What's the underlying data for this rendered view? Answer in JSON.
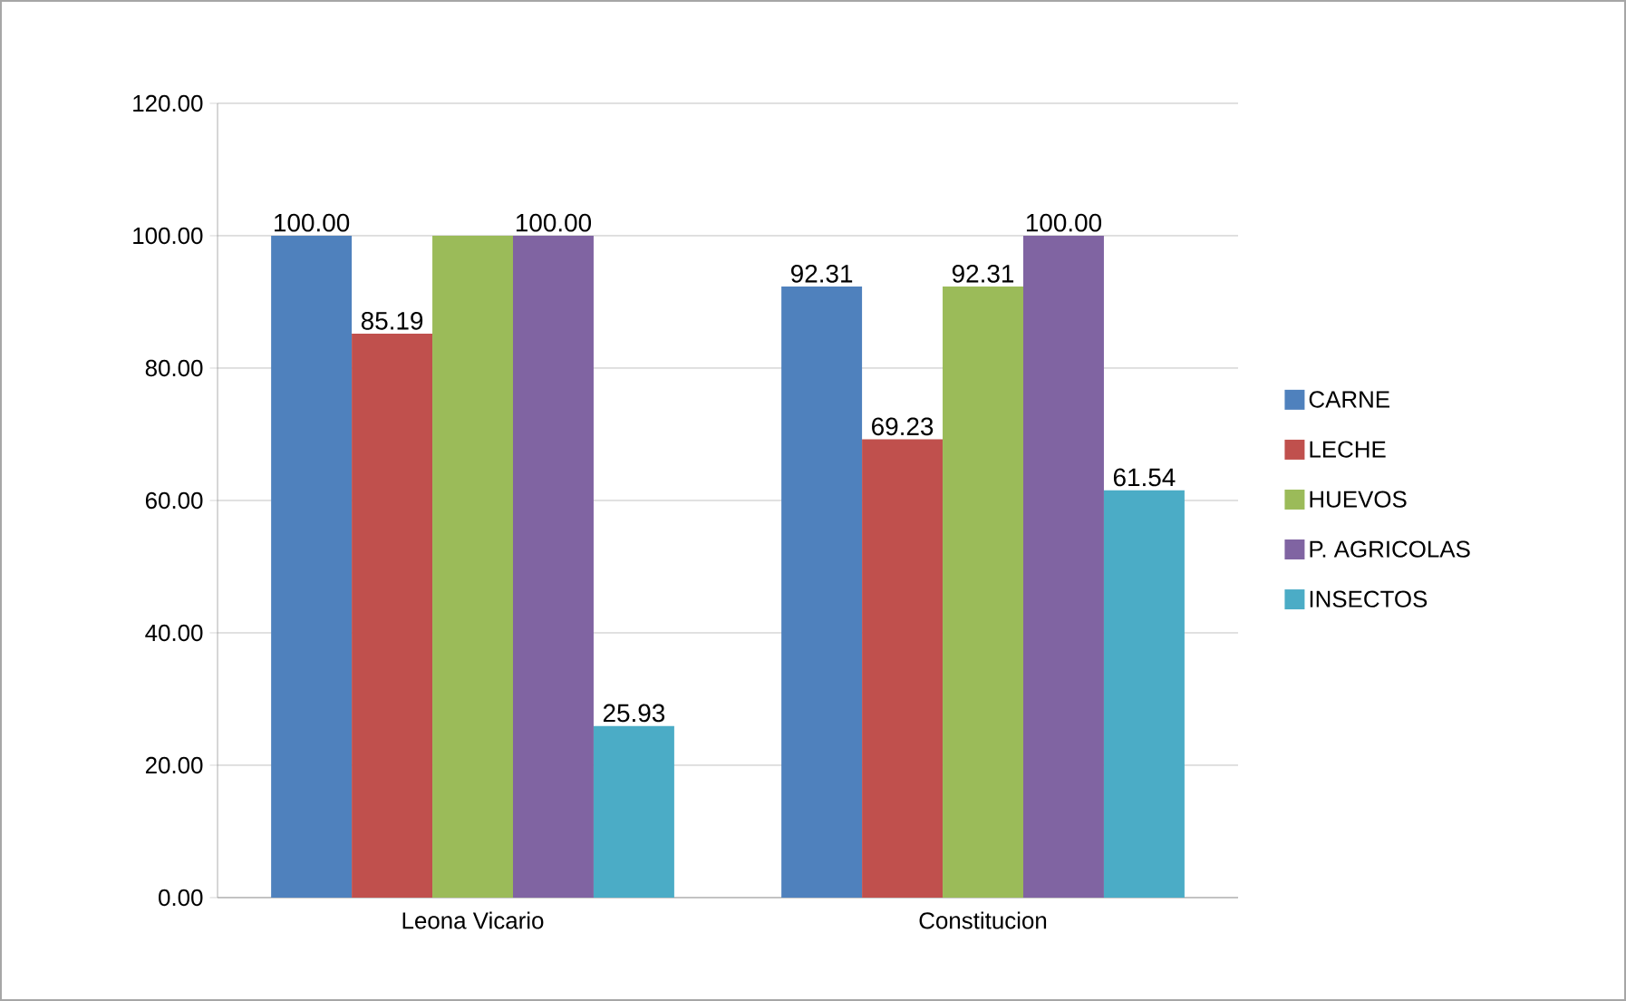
{
  "chart_data": {
    "type": "bar",
    "categories": [
      "Leona Vicario",
      "Constitucion"
    ],
    "series": [
      {
        "name": "CARNE",
        "color": "#4f81bd",
        "values": [
          100.0,
          92.31
        ],
        "value_labels": [
          "100.00",
          "92.31"
        ]
      },
      {
        "name": "LECHE",
        "color": "#c0504d",
        "values": [
          85.19,
          69.23
        ],
        "value_labels": [
          "85.19",
          "69.23"
        ]
      },
      {
        "name": "HUEVOS",
        "color": "#9bbb59",
        "values": [
          100.0,
          92.31
        ],
        "value_labels": [
          null,
          "92.31"
        ]
      },
      {
        "name": "P. AGRICOLAS",
        "color": "#8064a2",
        "values": [
          100.0,
          100.0
        ],
        "value_labels": [
          "100.00",
          "100.00"
        ]
      },
      {
        "name": "INSECTOS",
        "color": "#4bacc6",
        "values": [
          25.93,
          61.54
        ],
        "value_labels": [
          "25.93",
          "61.54"
        ]
      }
    ],
    "ylim": [
      0,
      120
    ],
    "yticks": [
      {
        "value": 0,
        "label": "0.00"
      },
      {
        "value": 20,
        "label": "20.00"
      },
      {
        "value": 40,
        "label": "40.00"
      },
      {
        "value": 60,
        "label": "60.00"
      },
      {
        "value": 80,
        "label": "80.00"
      },
      {
        "value": 100,
        "label": "100.00"
      },
      {
        "value": 120,
        "label": "120.00"
      }
    ],
    "grid": "y",
    "legend": "right"
  }
}
